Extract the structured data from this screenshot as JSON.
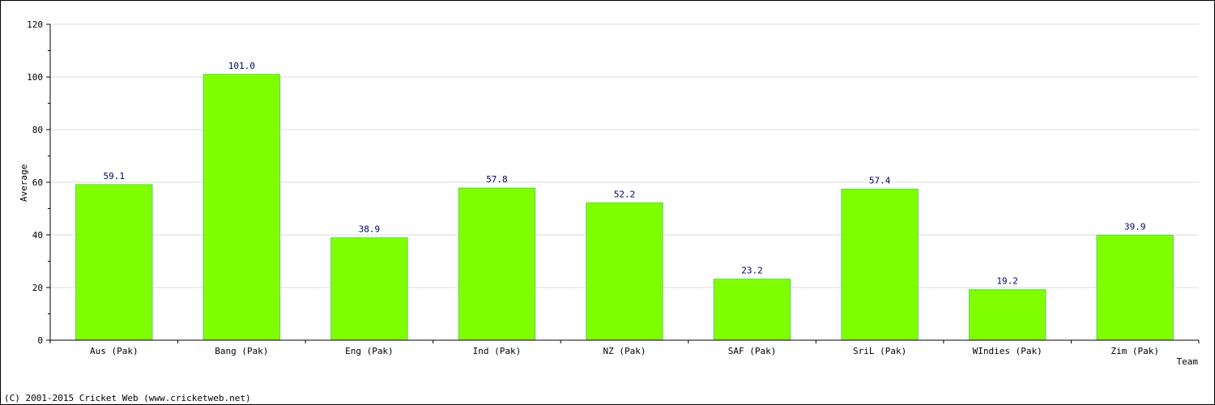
{
  "chart_data": {
    "type": "bar",
    "xlabel": "Team",
    "ylabel": "Average",
    "categories": [
      "Aus (Pak)",
      "Bang (Pak)",
      "Eng (Pak)",
      "Ind (Pak)",
      "NZ (Pak)",
      "SAF (Pak)",
      "SriL (Pak)",
      "WIndies (Pak)",
      "Zim (Pak)"
    ],
    "values": [
      59.1,
      101.0,
      38.9,
      57.8,
      52.2,
      23.2,
      57.4,
      19.2,
      39.9
    ],
    "value_labels": [
      "59.1",
      "101.0",
      "38.9",
      "57.8",
      "52.2",
      "23.2",
      "57.4",
      "19.2",
      "39.9"
    ],
    "ylim": [
      0,
      120
    ],
    "yticks": [
      0,
      20,
      40,
      60,
      80,
      100,
      120
    ],
    "grid": true,
    "colors": {
      "bar": "#80ff00",
      "bar_edge": "#66cc66",
      "value_label": "#000066",
      "grid": "#dddddd",
      "axis": "#000000"
    }
  },
  "footer": {
    "copyright": "(C) 2001-2015 Cricket Web (www.cricketweb.net)"
  }
}
